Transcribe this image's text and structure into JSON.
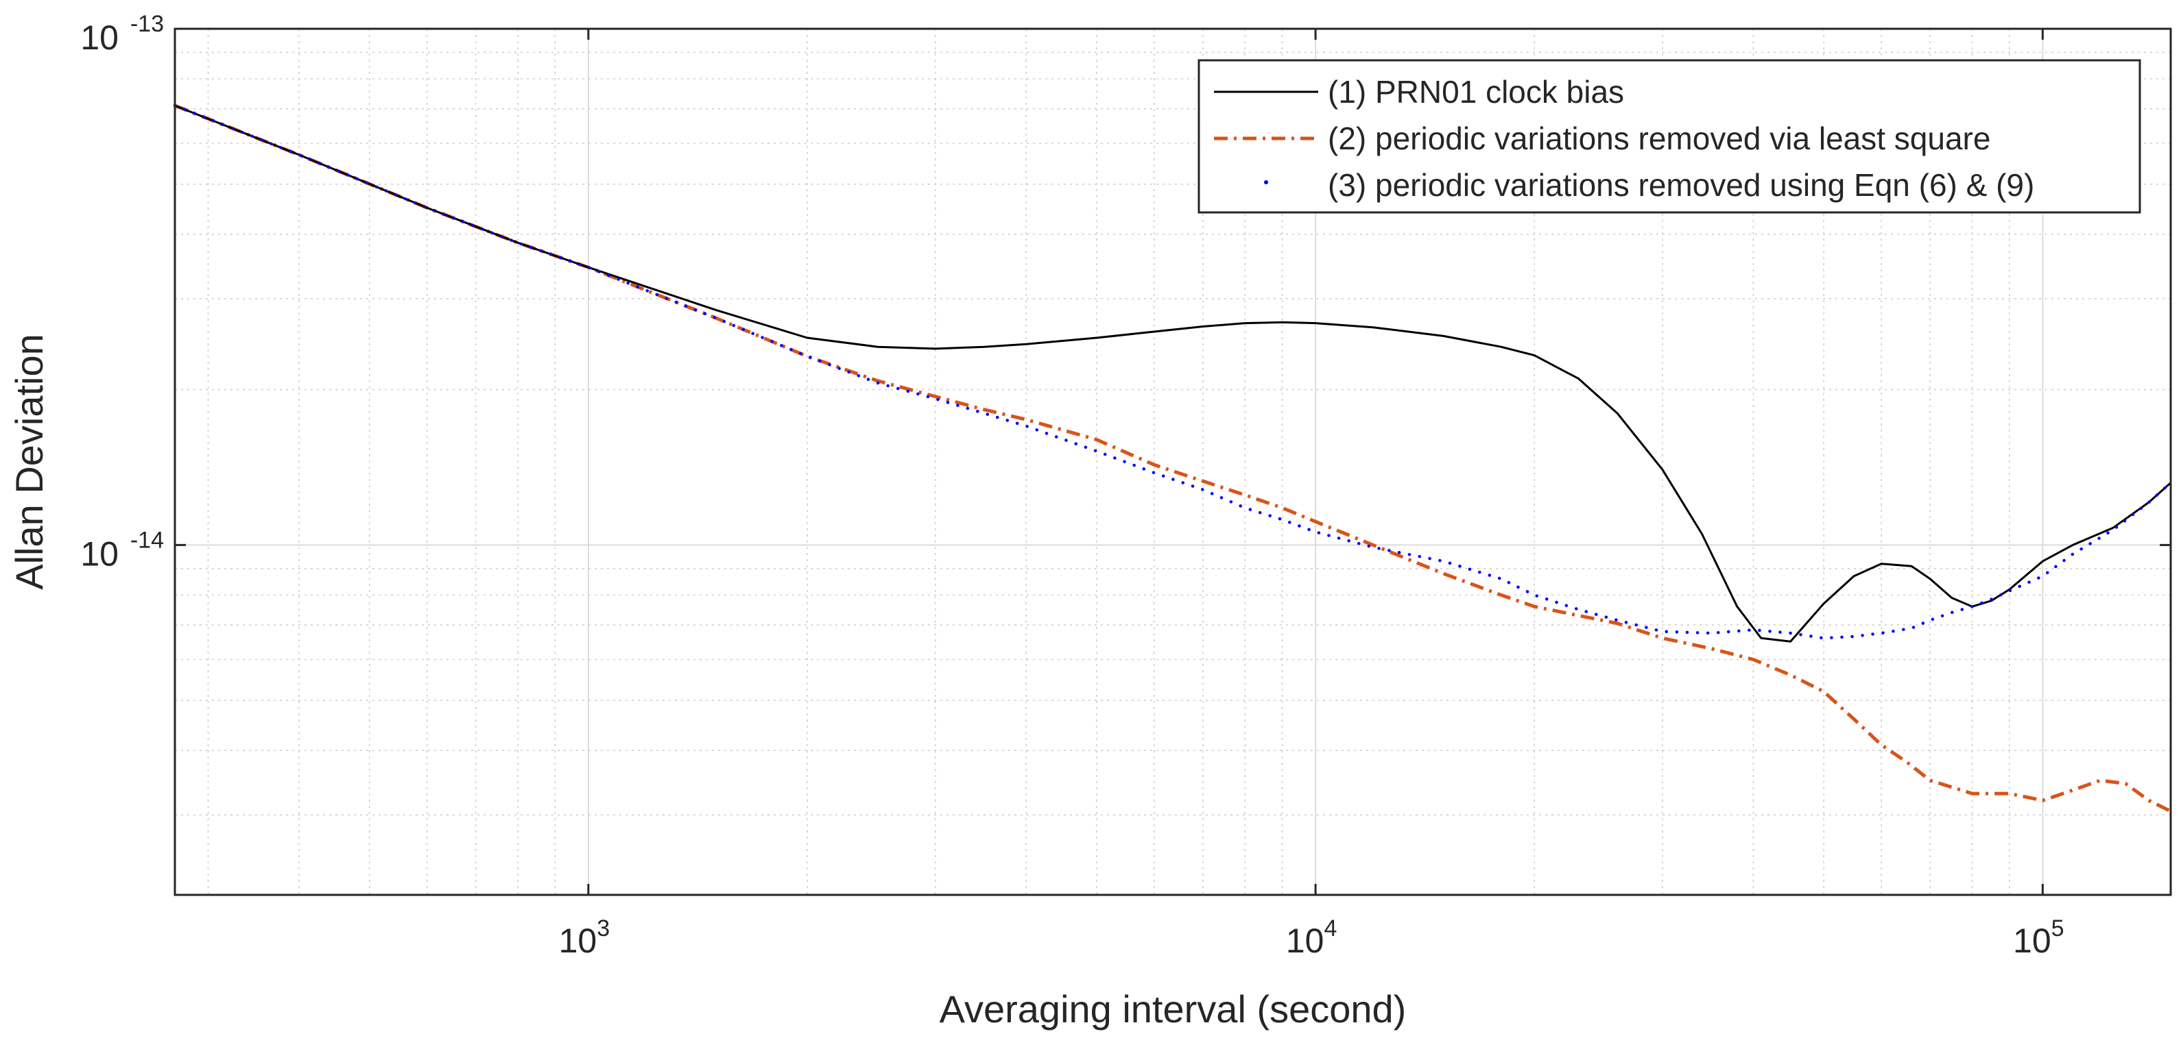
{
  "chart_data": {
    "type": "line",
    "title": "",
    "xlabel": "Averaging interval (second)",
    "ylabel": "Allan Deviation",
    "xscale": "log",
    "yscale": "log",
    "xlim": [
      270,
      150000
    ],
    "ylim": [
      2.1e-15,
      1e-13
    ],
    "grid": true,
    "legend_position": "top-right",
    "x_ticks": [
      {
        "value": 1000,
        "base": "10",
        "exp": "3"
      },
      {
        "value": 10000,
        "base": "10",
        "exp": "4"
      },
      {
        "value": 100000,
        "base": "10",
        "exp": "5"
      }
    ],
    "y_ticks": [
      {
        "value": 1e-13,
        "base": "10",
        "exp": "-13"
      },
      {
        "value": 1e-14,
        "base": "10",
        "exp": "-14"
      }
    ],
    "series": [
      {
        "name": "(1) PRN01 clock bias",
        "color": "#000000",
        "style": "solid",
        "x": [
          270,
          400,
          600,
          800,
          1000,
          1500,
          2000,
          2500,
          3000,
          3500,
          4000,
          5000,
          6000,
          7000,
          8000,
          9000,
          10000,
          12000,
          15000,
          18000,
          20000,
          23000,
          26000,
          30000,
          34000,
          38000,
          41000,
          45000,
          50000,
          55000,
          60000,
          66000,
          70000,
          75000,
          80000,
          85000,
          90000,
          100000,
          110000,
          125000,
          140000,
          150000
        ],
        "y": [
          7.1e-14,
          5.7e-14,
          4.5e-14,
          3.85e-14,
          3.45e-14,
          2.85e-14,
          2.52e-14,
          2.42e-14,
          2.4e-14,
          2.42e-14,
          2.45e-14,
          2.52e-14,
          2.59e-14,
          2.65e-14,
          2.69e-14,
          2.7e-14,
          2.69e-14,
          2.64e-14,
          2.54e-14,
          2.42e-14,
          2.33e-14,
          2.1e-14,
          1.8e-14,
          1.4e-14,
          1.05e-14,
          7.6e-15,
          6.6e-15,
          6.5e-15,
          7.7e-15,
          8.7e-15,
          9.2e-15,
          9.1e-15,
          8.6e-15,
          7.9e-15,
          7.6e-15,
          7.8e-15,
          8.2e-15,
          9.3e-15,
          1e-14,
          1.08e-14,
          1.21e-14,
          1.32e-14
        ]
      },
      {
        "name": "(2) periodic variations removed via least square",
        "color": "#d95319",
        "style": "dash-dot",
        "x": [
          270,
          400,
          600,
          800,
          1000,
          1500,
          2000,
          2500,
          3000,
          3500,
          4000,
          5000,
          6000,
          7000,
          8000,
          9000,
          10000,
          12000,
          15000,
          18000,
          20000,
          23000,
          26000,
          30000,
          35000,
          40000,
          45000,
          50000,
          55000,
          60000,
          65000,
          70000,
          80000,
          90000,
          100000,
          110000,
          120000,
          130000,
          140000,
          150000
        ],
        "y": [
          7.1e-14,
          5.7e-14,
          4.5e-14,
          3.85e-14,
          3.45e-14,
          2.75e-14,
          2.32e-14,
          2.08e-14,
          1.94e-14,
          1.83e-14,
          1.75e-14,
          1.6e-14,
          1.43e-14,
          1.33e-14,
          1.25e-14,
          1.18e-14,
          1.11e-14,
          1e-14,
          8.8e-15,
          8e-15,
          7.6e-15,
          7.3e-15,
          7.05e-15,
          6.6e-15,
          6.3e-15,
          6e-15,
          5.6e-15,
          5.2e-15,
          4.6e-15,
          4.1e-15,
          3.8e-15,
          3.5e-15,
          3.3e-15,
          3.3e-15,
          3.2e-15,
          3.35e-15,
          3.5e-15,
          3.45e-15,
          3.2e-15,
          3.05e-15
        ]
      },
      {
        "name": "(3) periodic variations removed using Eqn (6) & (9)",
        "color": "#0000ff",
        "style": "dotted",
        "x": [
          270,
          400,
          600,
          800,
          1000,
          1500,
          2000,
          2500,
          3000,
          3500,
          4000,
          5000,
          6000,
          7000,
          8000,
          9000,
          10000,
          12000,
          15000,
          18000,
          20000,
          23000,
          26000,
          30000,
          35000,
          40000,
          45000,
          50000,
          55000,
          60000,
          66000,
          70000,
          75000,
          80000,
          85000,
          90000,
          100000,
          110000,
          125000,
          140000,
          150000
        ],
        "y": [
          7.1e-14,
          5.7e-14,
          4.5e-14,
          3.85e-14,
          3.45e-14,
          2.75e-14,
          2.32e-14,
          2.06e-14,
          1.92e-14,
          1.8e-14,
          1.7e-14,
          1.52e-14,
          1.38e-14,
          1.28e-14,
          1.18e-14,
          1.12e-14,
          1.06e-14,
          9.9e-15,
          9.3e-15,
          8.6e-15,
          8e-15,
          7.5e-15,
          7.15e-15,
          6.8e-15,
          6.75e-15,
          6.85e-15,
          6.75e-15,
          6.6e-15,
          6.65e-15,
          6.75e-15,
          6.9e-15,
          7.15e-15,
          7.4e-15,
          7.6e-15,
          7.85e-15,
          8.15e-15,
          8.7e-15,
          9.6e-15,
          1.07e-14,
          1.21e-14,
          1.32e-14
        ]
      }
    ]
  }
}
